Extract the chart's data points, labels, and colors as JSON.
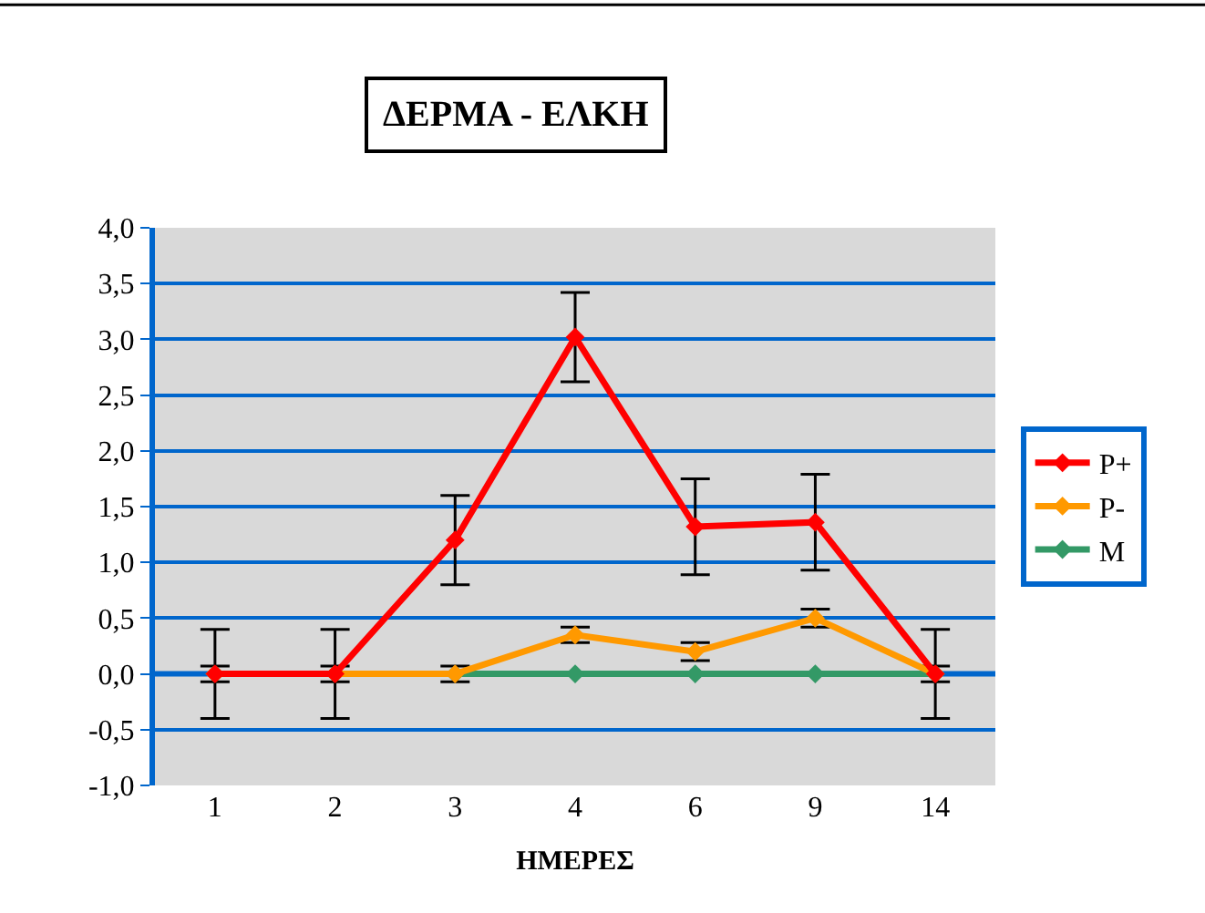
{
  "chart_data": {
    "type": "line",
    "title": "ΔΕΡΜΑ - ΕΛΚΗ",
    "xlabel": "ΗΜΕΡΕΣ",
    "categories": [
      "1",
      "2",
      "3",
      "4",
      "6",
      "9",
      "14"
    ],
    "series": [
      {
        "name": "P+",
        "color": "#ff0000",
        "values": [
          0,
          0,
          1.2,
          3.02,
          1.32,
          1.36,
          0
        ],
        "errors": [
          0.4,
          0.4,
          0.4,
          0.4,
          0.43,
          0.43,
          0.4
        ]
      },
      {
        "name": "P-",
        "color": "#ff9900",
        "values": [
          0,
          0,
          0,
          0.35,
          0.2,
          0.5,
          0
        ],
        "errors": [
          0.07,
          0.07,
          0.07,
          0.07,
          0.08,
          0.08,
          0.07
        ]
      },
      {
        "name": "M",
        "color": "#339966",
        "values": [
          0,
          0,
          0,
          0,
          0,
          0,
          0
        ]
      }
    ],
    "ylim": [
      -1,
      4
    ],
    "yticks": [
      {
        "value": -1,
        "label": "-1,0"
      },
      {
        "value": -0.5,
        "label": "-0,5"
      },
      {
        "value": 0,
        "label": "0,0"
      },
      {
        "value": 0.5,
        "label": "0,5"
      },
      {
        "value": 1,
        "label": "1,0"
      },
      {
        "value": 1.5,
        "label": "1,5"
      },
      {
        "value": 2,
        "label": "2,0"
      },
      {
        "value": 2.5,
        "label": "2,5"
      },
      {
        "value": 3,
        "label": "3,0"
      },
      {
        "value": 3.5,
        "label": "3,5"
      },
      {
        "value": 4,
        "label": "4,0"
      }
    ],
    "ref_lines": [
      {
        "axis": "y",
        "value": 0,
        "color": "#0066cc",
        "line_style": "solid"
      }
    ],
    "grid": "y",
    "legend": "right",
    "marker": "diamond",
    "line_style": "solid"
  }
}
